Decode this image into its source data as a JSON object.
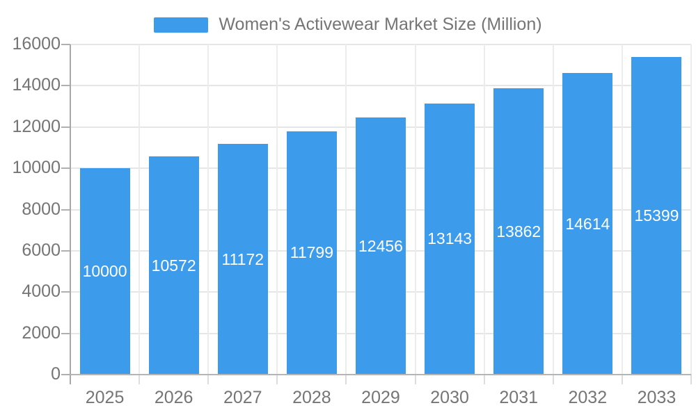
{
  "legend": {
    "label": "Women's Activewear Market Size (Million)",
    "marker_color": "#3d9beb"
  },
  "chart_data": {
    "type": "bar",
    "title": "Women's Activewear Market Size (Million)",
    "categories": [
      "2025",
      "2026",
      "2027",
      "2028",
      "2029",
      "2030",
      "2031",
      "2032",
      "2033"
    ],
    "values": [
      10000,
      10572,
      11172,
      11799,
      12456,
      13143,
      13862,
      14614,
      15399
    ],
    "value_labels": [
      "10000",
      "10572",
      "11172",
      "11799",
      "12456",
      "13143",
      "13862",
      "14614",
      "15399"
    ],
    "xlabel": "",
    "ylabel": "",
    "ylim": [
      0,
      16000
    ],
    "yticks": [
      0,
      2000,
      4000,
      6000,
      8000,
      10000,
      12000,
      14000,
      16000
    ],
    "ytick_labels": [
      "0",
      "2000",
      "4000",
      "6000",
      "8000",
      "10000",
      "12000",
      "14000",
      "16000"
    ],
    "grid": true,
    "legend_position": "top",
    "colors": {
      "bar": "#3d9beb",
      "value_label": "#ffffff",
      "axis_text": "#757575",
      "grid_line": "#e6e6e6",
      "category_line": "#ececec",
      "axis_line": "#b0b0b0"
    }
  }
}
